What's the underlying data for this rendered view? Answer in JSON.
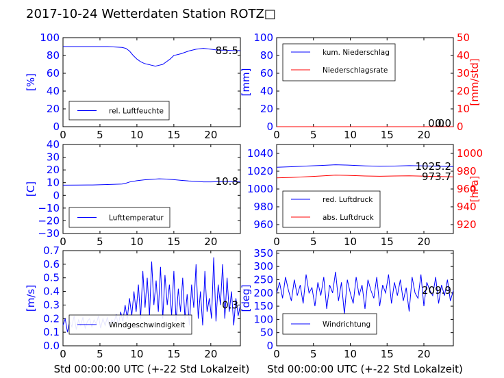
{
  "figure": {
    "title": "2017-10-24 Wetterdaten Station ROTZ□",
    "x_axis_label": "Std 00:00:00 UTC (+-22 Std Lokalzeit)"
  },
  "colors": {
    "blue": "#0000ff",
    "red": "#ff0000",
    "black": "#000000"
  },
  "chart_data": [
    {
      "type": "line",
      "panel": "humidity",
      "xlim": [
        0,
        24
      ],
      "ylim": [
        0,
        100
      ],
      "x_ticks": [
        "0",
        "5",
        "10",
        "15",
        "20"
      ],
      "y_ticks": [
        "0",
        "20",
        "40",
        "60",
        "80",
        "100"
      ],
      "ylabel": "[%]",
      "series": [
        {
          "name": "rel. Luftfeuchte",
          "color": "#0000ff",
          "x": [
            0,
            2,
            4,
            6,
            8,
            8.5,
            9,
            9.5,
            10,
            10.5,
            11,
            11.5,
            12,
            12.5,
            13,
            13.5,
            14,
            14.5,
            15,
            16,
            17,
            18,
            19,
            20,
            21,
            22,
            23,
            24
          ],
          "y": [
            90,
            90,
            90,
            90,
            89,
            88,
            85,
            80,
            76,
            73,
            71,
            70,
            69,
            68,
            69,
            70,
            73,
            76,
            80,
            82,
            85,
            87,
            88,
            87,
            86,
            86,
            85.5,
            85.5
          ]
        }
      ],
      "last_value_label": "85.5",
      "legend": "lower-left"
    },
    {
      "type": "line",
      "panel": "precipitation",
      "xlim": [
        0,
        24
      ],
      "ylim": [
        0,
        100
      ],
      "y2lim": [
        0,
        50
      ],
      "x_ticks": [
        "0",
        "5",
        "10",
        "15",
        "20"
      ],
      "y_ticks": [
        "0",
        "20",
        "40",
        "60",
        "80",
        "100"
      ],
      "y2_ticks": [
        "0",
        "10",
        "20",
        "30",
        "40",
        "50"
      ],
      "ylabel": "[mm]",
      "y2label": "[mm/std]",
      "series": [
        {
          "name": "kum. Niederschlag",
          "color": "#0000ff",
          "axis": "left",
          "x": [
            0,
            24
          ],
          "y": [
            0,
            0
          ]
        },
        {
          "name": "Niederschlagsrate",
          "color": "#ff0000",
          "axis": "right",
          "x": [
            0,
            24
          ],
          "y": [
            0,
            0
          ]
        }
      ],
      "last_value_labels": [
        "0.0",
        "0.0"
      ],
      "legend": "upper-left"
    },
    {
      "type": "line",
      "panel": "temperature",
      "xlim": [
        0,
        24
      ],
      "ylim": [
        -30,
        40
      ],
      "x_ticks": [
        "0",
        "5",
        "10",
        "15",
        "20"
      ],
      "y_ticks": [
        "−30",
        "−20",
        "−10",
        "0",
        "10",
        "20",
        "30",
        "40"
      ],
      "ylabel": "[C]",
      "series": [
        {
          "name": "Lufttemperatur",
          "color": "#0000ff",
          "x": [
            0,
            2,
            4,
            6,
            7,
            8,
            8.5,
            9,
            10,
            11,
            12,
            13,
            14,
            15,
            16,
            17,
            18,
            19,
            20,
            21,
            22,
            23,
            24
          ],
          "y": [
            8.0,
            8.1,
            8.2,
            8.5,
            8.7,
            8.9,
            9.5,
            10.5,
            11.5,
            12.2,
            12.6,
            13.0,
            12.8,
            12.3,
            11.8,
            11.3,
            11.0,
            10.6,
            10.6,
            10.7,
            10.8,
            10.8,
            10.8
          ]
        }
      ],
      "last_value_label": "10.8",
      "legend": "lower-left"
    },
    {
      "type": "line",
      "panel": "pressure",
      "xlim": [
        0,
        24
      ],
      "ylim": [
        950,
        1050
      ],
      "y2lim": [
        910,
        1010
      ],
      "x_ticks": [
        "0",
        "5",
        "10",
        "15",
        "20"
      ],
      "y_ticks": [
        "960",
        "980",
        "1000",
        "1020",
        "1040"
      ],
      "y2_ticks": [
        "920",
        "940",
        "960",
        "980",
        "1000"
      ],
      "y2label": "[hPa]",
      "series": [
        {
          "name": "red. Luftdruck",
          "color": "#0000ff",
          "axis": "left",
          "x": [
            0,
            2,
            4,
            6,
            8,
            10,
            12,
            14,
            16,
            18,
            20,
            22,
            24
          ],
          "y": [
            1024.5,
            1025.0,
            1025.8,
            1026.5,
            1027.2,
            1026.8,
            1026.0,
            1025.5,
            1025.8,
            1026.2,
            1026.0,
            1025.5,
            1025.2
          ]
        },
        {
          "name": "abs. Luftdruck",
          "color": "#ff0000",
          "axis": "right",
          "x": [
            0,
            2,
            4,
            6,
            8,
            10,
            12,
            14,
            16,
            18,
            20,
            22,
            24
          ],
          "y": [
            972.5,
            973.0,
            973.8,
            974.6,
            975.5,
            975.2,
            974.6,
            974.3,
            974.6,
            974.8,
            974.4,
            974.0,
            973.7
          ]
        }
      ],
      "last_value_labels": [
        "1025.2",
        "973.7"
      ],
      "legend": "lower-left"
    },
    {
      "type": "line",
      "panel": "wind-speed",
      "xlim": [
        0,
        24
      ],
      "ylim": [
        0,
        0.7
      ],
      "x_ticks": [
        "0",
        "5",
        "10",
        "15",
        "20"
      ],
      "y_ticks": [
        "0.0",
        "0.1",
        "0.2",
        "0.3",
        "0.4",
        "0.5",
        "0.6",
        "0.7"
      ],
      "ylabel": "[m/s]",
      "xlabel": "Std 00:00:00 UTC (+-22 Std Lokalzeit)",
      "series": [
        {
          "name": "Windgeschwindigkeit",
          "color": "#0000ff",
          "x": [
            0,
            0.3,
            0.6,
            0.9,
            1.2,
            1.5,
            1.8,
            2.1,
            2.4,
            2.7,
            3,
            3.3,
            3.6,
            3.9,
            4.2,
            4.5,
            4.8,
            5.1,
            5.4,
            5.7,
            6,
            6.3,
            6.6,
            6.9,
            7.2,
            7.5,
            7.8,
            8.1,
            8.4,
            8.7,
            9,
            9.3,
            9.6,
            9.9,
            10.2,
            10.5,
            10.8,
            11.1,
            11.4,
            11.7,
            12,
            12.3,
            12.6,
            12.9,
            13.2,
            13.5,
            13.8,
            14.1,
            14.4,
            14.7,
            15,
            15.3,
            15.6,
            15.9,
            16.2,
            16.5,
            16.8,
            17.1,
            17.4,
            17.7,
            18,
            18.3,
            18.6,
            18.9,
            19.2,
            19.5,
            19.8,
            20.1,
            20.4,
            20.7,
            21,
            21.3,
            21.6,
            21.9,
            22.2,
            22.5,
            22.8,
            23.1,
            23.4,
            23.7,
            24
          ],
          "y": [
            0.15,
            0.2,
            0.1,
            0.18,
            0.14,
            0.22,
            0.12,
            0.19,
            0.15,
            0.21,
            0.13,
            0.18,
            0.2,
            0.14,
            0.19,
            0.16,
            0.22,
            0.13,
            0.2,
            0.15,
            0.21,
            0.14,
            0.19,
            0.17,
            0.23,
            0.15,
            0.25,
            0.18,
            0.3,
            0.2,
            0.35,
            0.22,
            0.4,
            0.25,
            0.45,
            0.2,
            0.55,
            0.28,
            0.5,
            0.22,
            0.62,
            0.3,
            0.48,
            0.25,
            0.58,
            0.2,
            0.52,
            0.3,
            0.45,
            0.22,
            0.55,
            0.18,
            0.42,
            0.25,
            0.5,
            0.2,
            0.38,
            0.15,
            0.45,
            0.28,
            0.6,
            0.2,
            0.4,
            0.15,
            0.55,
            0.25,
            0.35,
            0.2,
            0.65,
            0.18,
            0.45,
            0.3,
            0.6,
            0.2,
            0.5,
            0.25,
            0.4,
            0.15,
            0.35,
            0.22,
            0.3
          ]
        }
      ],
      "last_value_label": "0.3",
      "legend": "lower-center"
    },
    {
      "type": "line",
      "panel": "wind-direction",
      "xlim": [
        0,
        24
      ],
      "ylim": [
        0,
        360
      ],
      "x_ticks": [
        "0",
        "5",
        "10",
        "15",
        "20"
      ],
      "y_ticks": [
        "0",
        "50",
        "100",
        "150",
        "200",
        "250",
        "300",
        "350"
      ],
      "ylabel": "[deg]",
      "xlabel": "Std 00:00:00 UTC (+-22 Std Lokalzeit)",
      "series": [
        {
          "name": "Windrichtung",
          "color": "#0000ff",
          "x": [
            0,
            0.4,
            0.8,
            1.2,
            1.6,
            2,
            2.4,
            2.8,
            3.2,
            3.6,
            4,
            4.4,
            4.8,
            5.2,
            5.6,
            6,
            6.4,
            6.8,
            7.2,
            7.6,
            8,
            8.4,
            8.8,
            9.2,
            9.6,
            10,
            10.4,
            10.8,
            11.2,
            11.6,
            12,
            12.4,
            12.8,
            13.2,
            13.6,
            14,
            14.4,
            14.8,
            15.2,
            15.6,
            16,
            16.4,
            16.8,
            17.2,
            17.6,
            18,
            18.4,
            18.8,
            19.2,
            19.6,
            20,
            20.4,
            20.8,
            21.2,
            21.6,
            22,
            22.4,
            22.8,
            23.2,
            23.6,
            24
          ],
          "y": [
            200,
            240,
            180,
            260,
            210,
            170,
            250,
            190,
            230,
            160,
            270,
            200,
            220,
            150,
            240,
            190,
            260,
            140,
            230,
            200,
            280,
            170,
            240,
            120,
            250,
            200,
            160,
            260,
            190,
            230,
            140,
            250,
            210,
            180,
            260,
            150,
            230,
            200,
            270,
            160,
            240,
            190,
            250,
            170,
            220,
            130,
            260,
            200,
            180,
            270,
            150,
            240,
            210,
            190,
            260,
            160,
            230,
            190,
            250,
            170,
            210
          ]
        }
      ],
      "last_value_label": "209.9",
      "legend": "lower-left"
    }
  ]
}
